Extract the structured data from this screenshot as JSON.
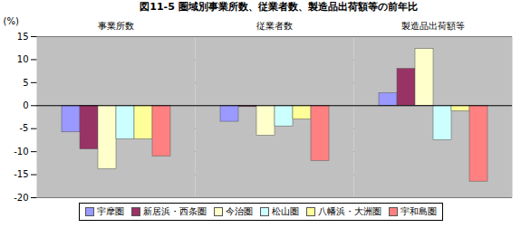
{
  "chart_data": {
    "type": "bar",
    "title": "図11-5 圏域別事業所数、従業者数、製造品出荷額等の前年比",
    "y_label": "(%)",
    "categories": [
      "事業所数",
      "従業者数",
      "製造品出荷額等"
    ],
    "series": [
      {
        "name": "宇摩圏",
        "color": "#9999ff",
        "values": [
          -5.8,
          -3.5,
          2.7
        ]
      },
      {
        "name": "新居浜・西条圏",
        "color": "#993366",
        "values": [
          -9.5,
          -0.3,
          8.0
        ]
      },
      {
        "name": "今治圏",
        "color": "#ffffcc",
        "values": [
          -13.8,
          -6.5,
          12.3
        ]
      },
      {
        "name": "松山圏",
        "color": "#ccffff",
        "values": [
          -7.3,
          -4.5,
          -7.5
        ]
      },
      {
        "name": "八幡浜・大洲圏",
        "color": "#ffff99",
        "values": [
          -7.3,
          -3.0,
          -1.2
        ]
      },
      {
        "name": "宇和島圏",
        "color": "#ff8080",
        "values": [
          -11.0,
          -12.0,
          -16.5
        ]
      }
    ],
    "ylim": [
      -20,
      15
    ],
    "yticks": [
      -20,
      -15,
      -10,
      -5,
      0,
      5,
      10,
      15
    ],
    "grid": true,
    "legend": "bottom"
  }
}
